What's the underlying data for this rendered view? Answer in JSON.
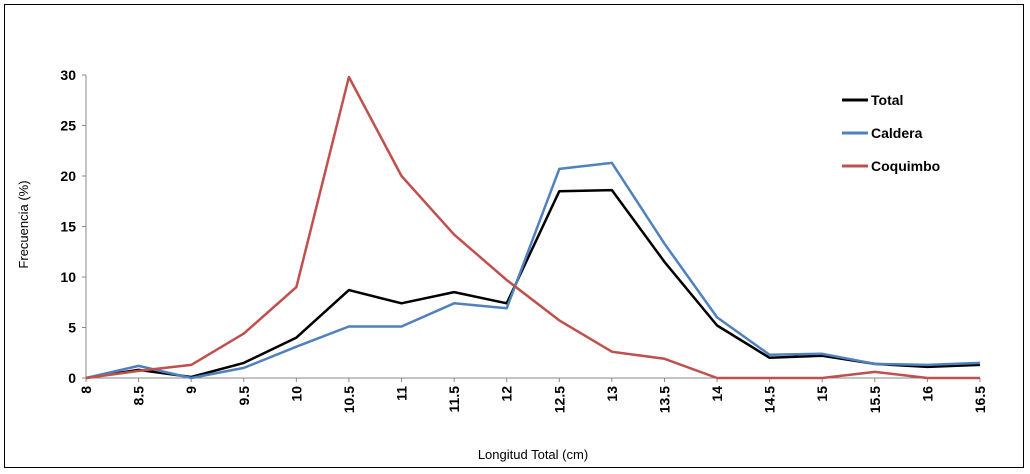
{
  "chart_data": {
    "type": "line",
    "xlabel": "Longitud Total (cm)",
    "ylabel": "Frecuencia  (%)",
    "categories": [
      "8",
      "8.5",
      "9",
      "9.5",
      "10",
      "10.5",
      "11",
      "11.5",
      "12",
      "12.5",
      "13",
      "13.5",
      "14",
      "14.5",
      "15",
      "15.5",
      "16",
      "16.5"
    ],
    "ylim": [
      0,
      30
    ],
    "yticks": [
      0,
      5,
      10,
      15,
      20,
      25,
      30
    ],
    "grid": false,
    "legend_position": "top-right",
    "series": [
      {
        "name": "Total",
        "color": "#000000",
        "values": [
          0,
          0.8,
          0.1,
          1.5,
          4.0,
          8.7,
          7.4,
          8.5,
          7.4,
          18.5,
          18.6,
          11.5,
          5.2,
          2.0,
          2.2,
          1.4,
          1.1,
          1.3
        ]
      },
      {
        "name": "Caldera",
        "color": "#4F81BD",
        "values": [
          0,
          1.2,
          0,
          1.0,
          3.1,
          5.1,
          5.1,
          7.4,
          6.9,
          20.7,
          21.3,
          13.3,
          6.0,
          2.3,
          2.4,
          1.4,
          1.3,
          1.5
        ]
      },
      {
        "name": "Coquimbo",
        "color": "#C0504D",
        "values": [
          0,
          0.7,
          1.3,
          4.4,
          9.0,
          29.8,
          20.0,
          14.2,
          9.7,
          5.7,
          2.6,
          1.9,
          0,
          0,
          0,
          0.6,
          0,
          0
        ]
      }
    ]
  }
}
